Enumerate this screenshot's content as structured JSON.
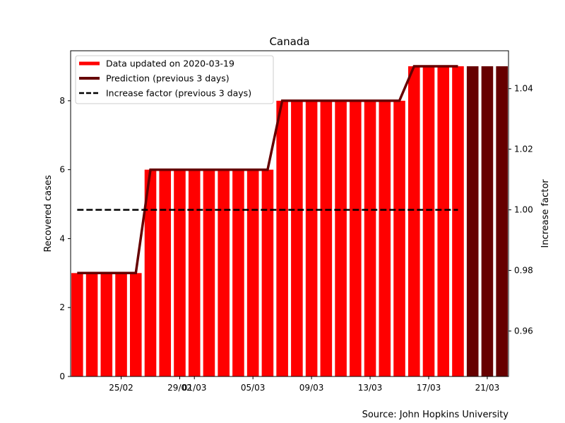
{
  "chart_data": {
    "type": "bar",
    "title": "Canada",
    "ylabel": "Recovered cases",
    "y2label": "Increase factor",
    "source": "Source: John Hopkins University",
    "ylim": [
      0,
      9.45
    ],
    "y2lim": [
      0.945,
      1.0525
    ],
    "yticks": [
      0,
      2,
      4,
      6,
      8
    ],
    "y2ticks": [
      "0.96",
      "0.98",
      "1.00",
      "1.02",
      "1.04"
    ],
    "y2tick_values": [
      0.96,
      0.98,
      1.0,
      1.02,
      1.04
    ],
    "dates": [
      "2020-02-22",
      "2020-02-23",
      "2020-02-24",
      "2020-02-25",
      "2020-02-26",
      "2020-02-27",
      "2020-02-28",
      "2020-02-29",
      "2020-03-01",
      "2020-03-02",
      "2020-03-03",
      "2020-03-04",
      "2020-03-05",
      "2020-03-06",
      "2020-03-07",
      "2020-03-08",
      "2020-03-09",
      "2020-03-10",
      "2020-03-11",
      "2020-03-12",
      "2020-03-13",
      "2020-03-14",
      "2020-03-15",
      "2020-03-16",
      "2020-03-17",
      "2020-03-18",
      "2020-03-19"
    ],
    "recovered": [
      3,
      3,
      3,
      3,
      3,
      6,
      6,
      6,
      6,
      6,
      6,
      6,
      6,
      6,
      8,
      8,
      8,
      8,
      8,
      8,
      8,
      8,
      8,
      9,
      9,
      9,
      9
    ],
    "prediction_dates": [
      "2020-03-20",
      "2020-03-21",
      "2020-03-22"
    ],
    "prediction": [
      9,
      9,
      9
    ],
    "increase_factor": [
      1,
      1,
      1,
      1,
      1,
      1,
      1,
      1,
      1,
      1,
      1,
      1,
      1,
      1,
      1,
      1,
      1,
      1,
      1,
      1,
      1,
      1,
      1,
      1,
      1,
      1,
      1
    ],
    "xticks": [
      {
        "date": "2020-02-25",
        "label": "25/02"
      },
      {
        "date": "2020-02-29",
        "label": "29/02"
      },
      {
        "date": "2020-03-01",
        "label": "01/03"
      },
      {
        "date": "2020-03-05",
        "label": "05/03"
      },
      {
        "date": "2020-03-09",
        "label": "09/03"
      },
      {
        "date": "2020-03-13",
        "label": "13/03"
      },
      {
        "date": "2020-03-17",
        "label": "17/03"
      },
      {
        "date": "2020-03-21",
        "label": "21/03"
      }
    ],
    "legend": {
      "placement": "top-left",
      "entries": [
        {
          "label": "Data updated on 2020-03-19",
          "style": "data"
        },
        {
          "label": "Prediction (previous 3 days)",
          "style": "prediction"
        },
        {
          "label": "Increase factor (previous 3 days)",
          "style": "factor"
        }
      ]
    },
    "colors": {
      "data": "#ff0000",
      "prediction": "#660000",
      "factor": "#000000"
    },
    "grid": false
  }
}
